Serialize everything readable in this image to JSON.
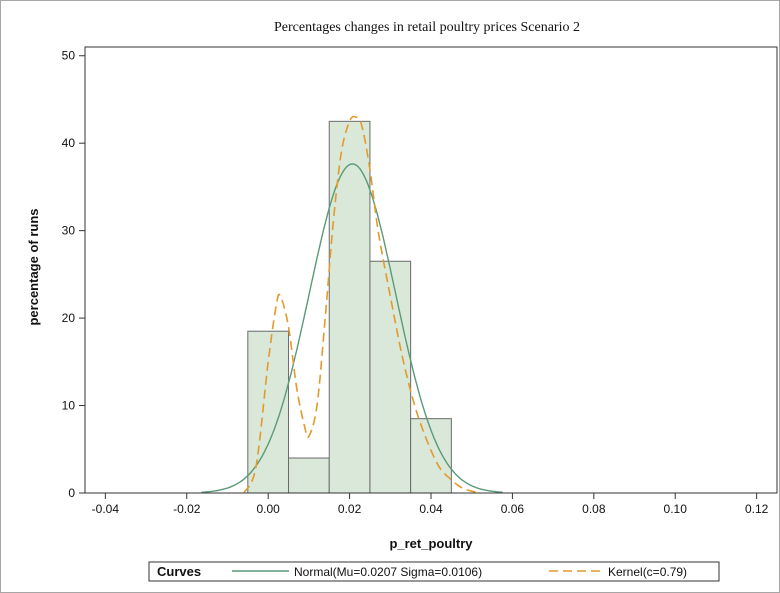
{
  "chart_data": {
    "type": "histogram",
    "title": "Percentages changes in retail poultry prices Scenario 2",
    "xlabel": "p_ret_poultry",
    "ylabel": "percentage of runs",
    "xlim": [
      -0.045,
      0.125
    ],
    "ylim": [
      0,
      51
    ],
    "xticks": [
      "-0.04",
      "-0.02",
      "0.00",
      "0.02",
      "0.04",
      "0.06",
      "0.08",
      "0.10",
      "0.12"
    ],
    "xtick_values": [
      -0.04,
      -0.02,
      0.0,
      0.02,
      0.04,
      0.06,
      0.08,
      0.1,
      0.12
    ],
    "yticks": [
      "0",
      "10",
      "20",
      "30",
      "40",
      "50"
    ],
    "ytick_values": [
      0,
      10,
      20,
      30,
      40,
      50
    ],
    "bins": [
      {
        "from": -0.005,
        "to": 0.005,
        "value": 18.5
      },
      {
        "from": 0.005,
        "to": 0.015,
        "value": 4
      },
      {
        "from": 0.015,
        "to": 0.025,
        "value": 42.5
      },
      {
        "from": 0.025,
        "to": 0.035,
        "value": 26.5
      },
      {
        "from": 0.035,
        "to": 0.045,
        "value": 8.5
      }
    ],
    "normal": {
      "mu": 0.0207,
      "sigma": 0.0106
    },
    "kernel": {
      "x": [
        -0.006,
        -0.003,
        0.0,
        0.002,
        0.003,
        0.005,
        0.007,
        0.009,
        0.01,
        0.012,
        0.014,
        0.016,
        0.018,
        0.02,
        0.0215,
        0.023,
        0.025,
        0.027,
        0.03,
        0.033,
        0.036,
        0.039,
        0.042,
        0.045,
        0.048,
        0.052
      ],
      "y": [
        0,
        3,
        15,
        21.5,
        22.5,
        19,
        12,
        7.5,
        6.5,
        10,
        20,
        31,
        39,
        42.5,
        43,
        42,
        37,
        30,
        22.5,
        15.5,
        10,
        6,
        3,
        1.5,
        0.5,
        0
      ]
    },
    "legend": {
      "heading": "Curves",
      "entries": [
        {
          "label": "Normal(Mu=0.0207 Sigma=0.0106)",
          "color": "#5a9a78",
          "style": "solid"
        },
        {
          "label": "Kernel(c=0.79)",
          "color": "#e39a2c",
          "style": "dashed"
        }
      ],
      "placement": "bottom"
    },
    "colors": {
      "bar_fill": "#d9e8d9",
      "bar_stroke": "#6b6b6b",
      "axis": "#333333"
    },
    "grid": false
  }
}
